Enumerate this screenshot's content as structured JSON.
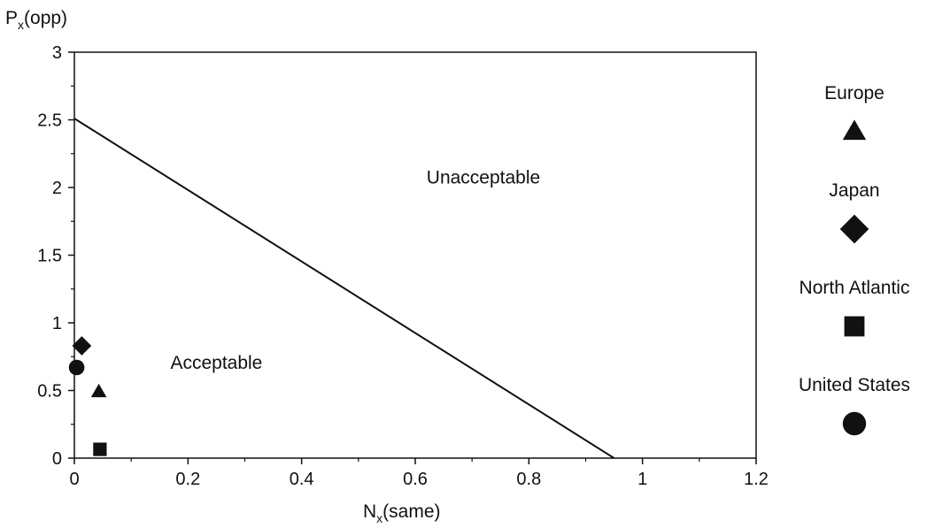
{
  "chart_data": {
    "type": "scatter",
    "title": "",
    "ylabel_main": "P",
    "ylabel_sub": "x",
    "ylabel_tail": "(opp)",
    "xlabel_main": "N",
    "xlabel_sub": "x",
    "xlabel_tail": "(same)",
    "xlim": [
      0,
      1.2
    ],
    "ylim": [
      0,
      3
    ],
    "x_ticks": [
      0,
      0.2,
      0.4,
      0.6,
      0.8,
      1,
      1.2
    ],
    "x_tick_labels": [
      "0",
      "0.2",
      "0.4",
      "0.6",
      "0.8",
      "1",
      "1.2"
    ],
    "y_ticks": [
      0,
      0.5,
      1,
      1.5,
      2,
      2.5,
      3
    ],
    "y_tick_labels": [
      "0",
      "0.5",
      "1",
      "1.5",
      "2",
      "2.5",
      "3"
    ],
    "grid": false,
    "boundary_line": {
      "x": [
        0,
        0.95
      ],
      "y": [
        2.51,
        0
      ]
    },
    "regions": [
      {
        "label": "Unacceptable",
        "x": 0.72,
        "y": 2.03
      },
      {
        "label": "Acceptable",
        "x": 0.25,
        "y": 0.66
      }
    ],
    "legend_position": "right",
    "series": [
      {
        "name": "Europe",
        "marker": "triangle",
        "x": [
          0.043
        ],
        "y": [
          0.49
        ]
      },
      {
        "name": "Japan",
        "marker": "diamond",
        "x": [
          0.013
        ],
        "y": [
          0.83
        ]
      },
      {
        "name": "North Atlantic",
        "marker": "square",
        "x": [
          0.045
        ],
        "y": [
          0.065
        ]
      },
      {
        "name": "United States",
        "marker": "circle",
        "x": [
          0.004
        ],
        "y": [
          0.67
        ]
      }
    ],
    "colors": {
      "marker": "#111111",
      "axis": "#111111",
      "line": "#111111"
    }
  }
}
